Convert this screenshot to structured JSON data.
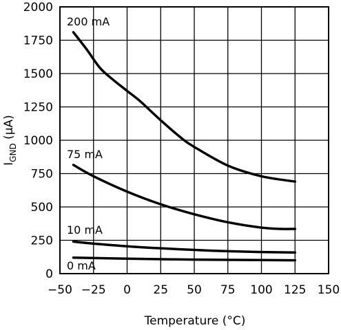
{
  "chart_data": {
    "type": "line",
    "xlabel": "Temperature (°C)",
    "ylabel_main": "I",
    "ylabel_sub": "GND",
    "ylabel_unit": " (µA)",
    "xlim": [
      -50,
      150
    ],
    "ylim": [
      0,
      2000
    ],
    "xticks": [
      -50,
      -25,
      0,
      25,
      50,
      75,
      100,
      125,
      150
    ],
    "yticks": [
      0,
      250,
      500,
      750,
      1000,
      1250,
      1500,
      1750,
      2000
    ],
    "grid": true,
    "series": [
      {
        "name": "200 mA",
        "x": [
          -40,
          -30,
          -20,
          -10,
          0,
          10,
          25,
          40,
          50,
          75,
          100,
          125
        ],
        "y": [
          1810,
          1680,
          1540,
          1450,
          1370,
          1290,
          1150,
          1020,
          950,
          810,
          730,
          690
        ]
      },
      {
        "name": "75 mA",
        "x": [
          -40,
          -25,
          0,
          25,
          50,
          75,
          100,
          115,
          125
        ],
        "y": [
          815,
          730,
          615,
          520,
          445,
          385,
          345,
          335,
          335
        ]
      },
      {
        "name": "10 mA",
        "x": [
          -40,
          -25,
          0,
          25,
          50,
          75,
          100,
          125
        ],
        "y": [
          240,
          225,
          205,
          190,
          178,
          168,
          162,
          158
        ]
      },
      {
        "name": "0 mA",
        "x": [
          -40,
          0,
          50,
          100,
          125
        ],
        "y": [
          120,
          112,
          105,
          102,
          100
        ]
      }
    ]
  }
}
